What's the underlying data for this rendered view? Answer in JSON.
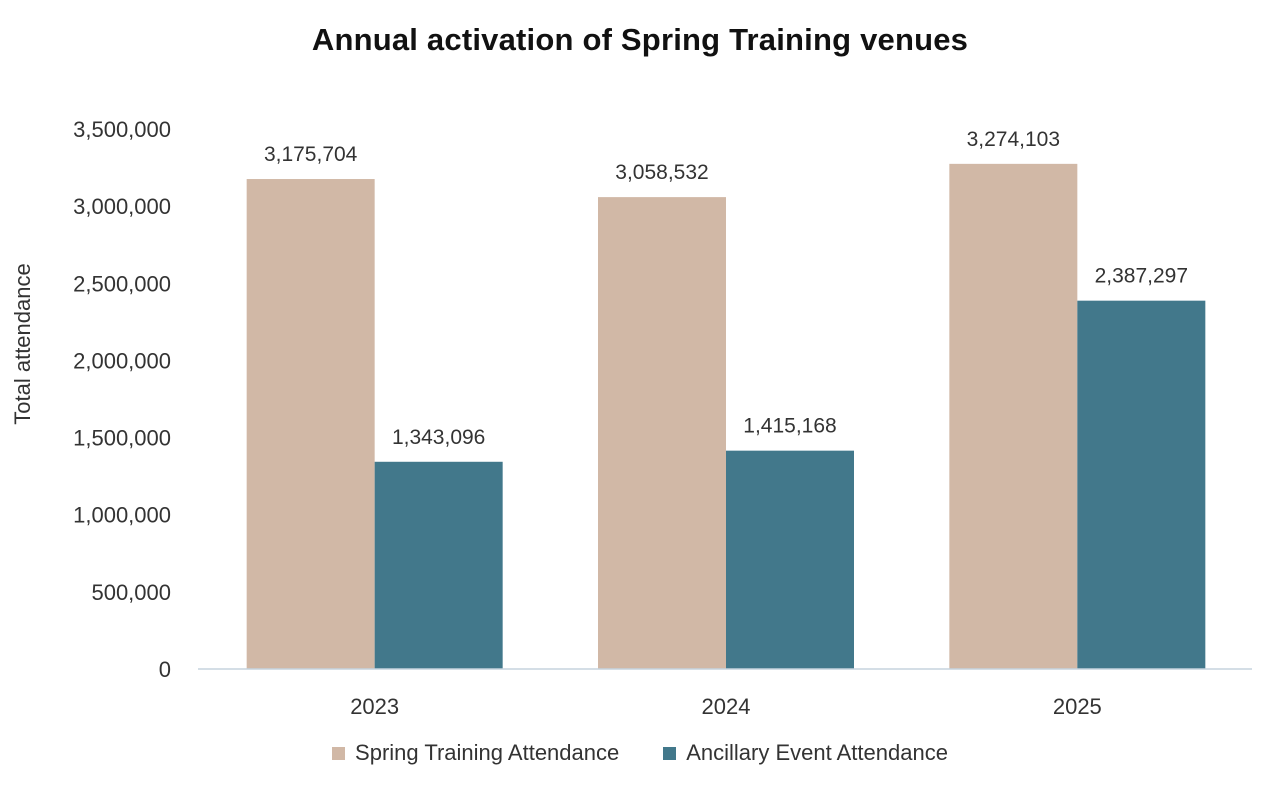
{
  "chart_data": {
    "type": "bar",
    "title": "Annual activation of Spring Training venues",
    "xlabel": "",
    "ylabel": "Total attendance",
    "categories": [
      "2023",
      "2024",
      "2025"
    ],
    "ylim": [
      0,
      3500000
    ],
    "yticks": [
      0,
      500000,
      1000000,
      1500000,
      2000000,
      2500000,
      3000000,
      3500000
    ],
    "ytick_labels": [
      "0",
      "500,000",
      "1,000,000",
      "1,500,000",
      "2,000,000",
      "2,500,000",
      "3,000,000",
      "3,500,000"
    ],
    "grid": false,
    "legend_position": "bottom",
    "series": [
      {
        "name": "Spring Training Attendance",
        "color": "#d1b8a6",
        "values": [
          3175704,
          3058532,
          3274103
        ],
        "labels": [
          "3,175,704",
          "3,058,532",
          "3,274,103"
        ]
      },
      {
        "name": "Ancillary Event Attendance",
        "color": "#42788b",
        "values": [
          1343096,
          1415168,
          2387297
        ],
        "labels": [
          "1,343,096",
          "1,415,168",
          "2,387,297"
        ]
      }
    ]
  }
}
